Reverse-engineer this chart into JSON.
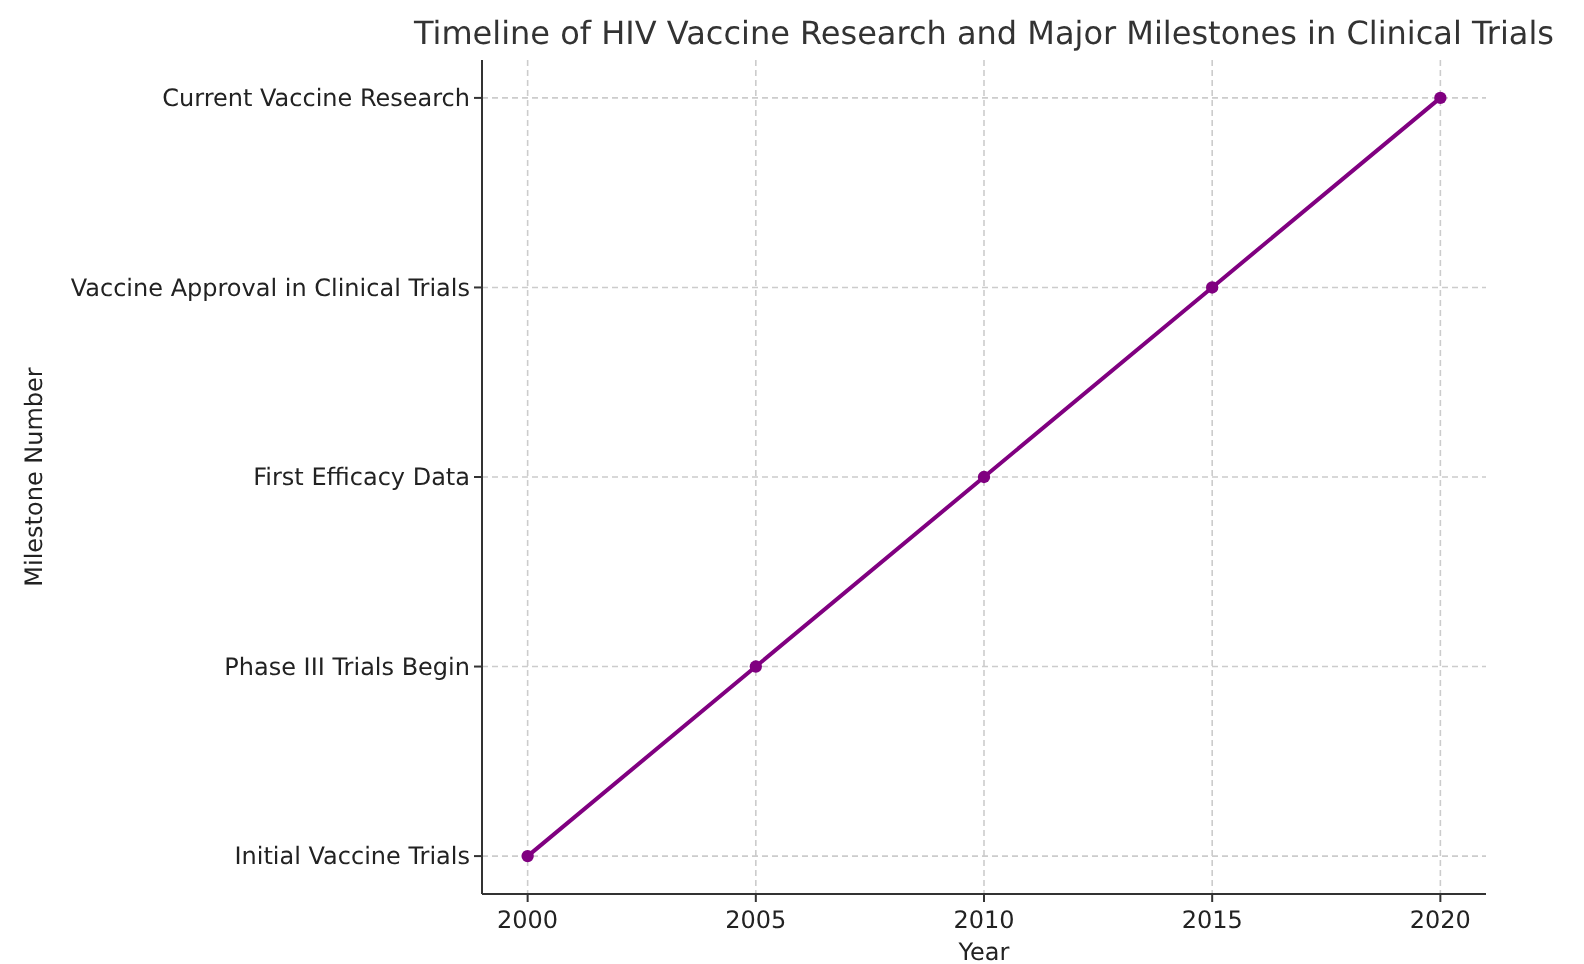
{
  "chart_data": {
    "type": "line",
    "orientation": "horizontal",
    "title": "Timeline of HIV Vaccine Research and Major Milestones in Clinical Trials",
    "xlabel": "Year",
    "ylabel": "Milestone Number",
    "categories": [
      "Current Vaccine Research",
      "Vaccine Approval in Clinical Trials",
      "First Efficacy Data",
      "Phase III Trials Begin",
      "Initial Vaccine Trials"
    ],
    "series": [
      {
        "color": "#800080",
        "values": [
          2020,
          2015,
          2010,
          2005,
          2000
        ]
      }
    ],
    "xlim": [
      1999,
      2021
    ],
    "xticks": [
      2000,
      2005,
      2010,
      2015,
      2020
    ],
    "grid": true,
    "marker": "circle",
    "line_style": "solid"
  }
}
